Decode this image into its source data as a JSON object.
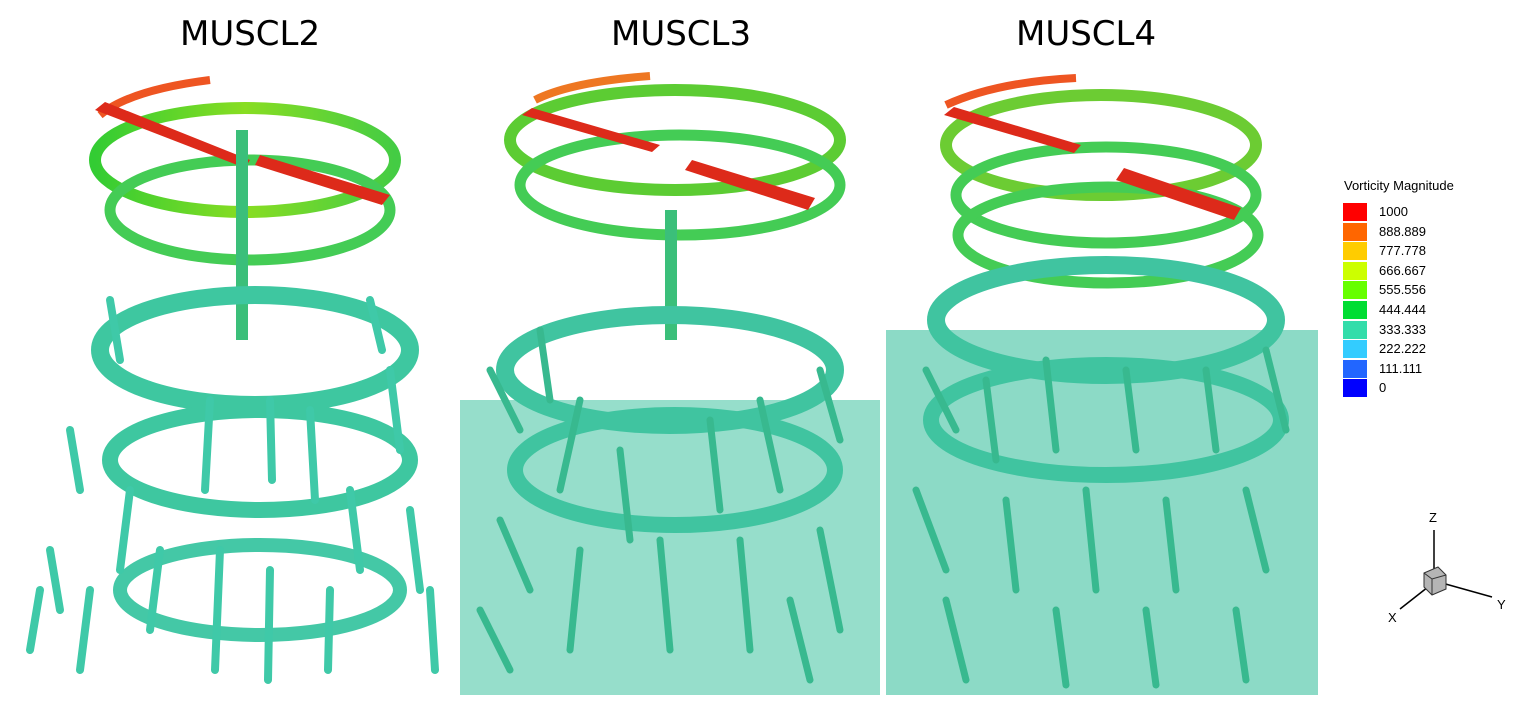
{
  "panels": [
    {
      "title": "MUSCL2"
    },
    {
      "title": "MUSCL3"
    },
    {
      "title": "MUSCL4"
    }
  ],
  "legend": {
    "title": "Vorticity Magnitude",
    "levels": [
      {
        "label": "1000",
        "color": "#ff0000"
      },
      {
        "label": "888.889",
        "color": "#ff6600"
      },
      {
        "label": "777.778",
        "color": "#ffcc00"
      },
      {
        "label": "666.667",
        "color": "#ccff00"
      },
      {
        "label": "555.556",
        "color": "#66ff00"
      },
      {
        "label": "444.444",
        "color": "#00dd33"
      },
      {
        "label": "333.333",
        "color": "#33ddaa"
      },
      {
        "label": "222.222",
        "color": "#33ccff"
      },
      {
        "label": "111.111",
        "color": "#2266ff"
      },
      {
        "label": "0",
        "color": "#0000ff"
      }
    ]
  },
  "axes": {
    "z": "Z",
    "y": "Y",
    "x": "X"
  }
}
